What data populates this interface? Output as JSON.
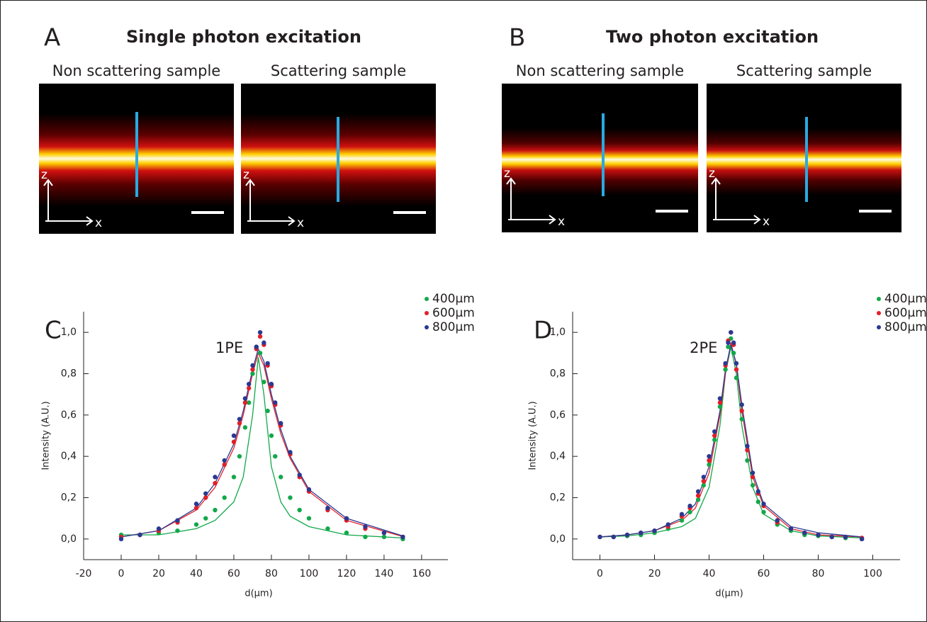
{
  "panels": [
    {
      "label": "A",
      "title": "Single photon excitation",
      "images": [
        "Non scattering sample",
        "Scattering sample"
      ]
    },
    {
      "label": "B",
      "title": "Two photon excitation",
      "images": [
        "Non scattering sample",
        "Scattering sample"
      ]
    }
  ],
  "axis_labels": {
    "z": "z",
    "x": "x"
  },
  "chart_data": [
    {
      "type": "scatter",
      "panel_label": "C",
      "annotation": "1PE",
      "x_label": "d(µm)",
      "y_label": "Intensity (A.U.)",
      "xlim": [
        -20,
        174
      ],
      "ylim": [
        -0.1,
        1.1
      ],
      "xticks": [
        -20,
        0,
        20,
        40,
        60,
        80,
        100,
        120,
        140,
        160
      ],
      "yticks": [
        {
          "value": 0,
          "label": "0,0"
        },
        {
          "value": 0.2,
          "label": "0,2"
        },
        {
          "value": 0.4,
          "label": "0,4"
        },
        {
          "value": 0.6,
          "label": "0,6"
        },
        {
          "value": 0.8,
          "label": "0,8"
        },
        {
          "value": 1.0,
          "label": "1,0"
        }
      ],
      "legend": "upper right",
      "series": [
        {
          "name": "400µm",
          "color": "#12a84a",
          "x": [
            0,
            10,
            20,
            30,
            40,
            45,
            50,
            55,
            60,
            63,
            66,
            68,
            70,
            72,
            74,
            76,
            78,
            80,
            82,
            85,
            90,
            95,
            100,
            110,
            120,
            130,
            140,
            150
          ],
          "values": [
            0.02,
            0.02,
            0.03,
            0.04,
            0.07,
            0.1,
            0.14,
            0.2,
            0.3,
            0.4,
            0.54,
            0.66,
            0.8,
            0.93,
            0.9,
            0.76,
            0.62,
            0.5,
            0.4,
            0.3,
            0.2,
            0.14,
            0.1,
            0.05,
            0.03,
            0.01,
            0.01,
            0.0
          ]
        },
        {
          "name": "600µm",
          "color": "#e0202a",
          "x": [
            0,
            10,
            20,
            30,
            40,
            45,
            50,
            55,
            60,
            63,
            66,
            68,
            70,
            72,
            74,
            76,
            78,
            80,
            82,
            85,
            90,
            95,
            100,
            110,
            120,
            130,
            140,
            150
          ],
          "values": [
            0.01,
            0.02,
            0.04,
            0.08,
            0.15,
            0.2,
            0.27,
            0.36,
            0.47,
            0.56,
            0.66,
            0.73,
            0.82,
            0.92,
            0.98,
            0.94,
            0.84,
            0.74,
            0.65,
            0.55,
            0.41,
            0.3,
            0.23,
            0.14,
            0.09,
            0.05,
            0.03,
            0.01
          ]
        },
        {
          "name": "800µm",
          "color": "#2b3990",
          "x": [
            0,
            10,
            20,
            30,
            40,
            45,
            50,
            55,
            60,
            63,
            66,
            68,
            70,
            72,
            74,
            76,
            78,
            80,
            82,
            85,
            90,
            95,
            100,
            110,
            120,
            130,
            140,
            150
          ],
          "values": [
            0.0,
            0.02,
            0.05,
            0.09,
            0.17,
            0.22,
            0.3,
            0.38,
            0.5,
            0.58,
            0.68,
            0.75,
            0.84,
            0.93,
            1.0,
            0.95,
            0.85,
            0.75,
            0.66,
            0.56,
            0.42,
            0.31,
            0.24,
            0.15,
            0.1,
            0.06,
            0.03,
            0.01
          ]
        }
      ],
      "fits": [
        {
          "color": "#12a84a",
          "x": [
            0,
            20,
            40,
            50,
            60,
            65,
            70,
            73,
            76,
            80,
            85,
            90,
            100,
            120,
            150
          ],
          "values": [
            0.02,
            0.02,
            0.05,
            0.09,
            0.18,
            0.3,
            0.6,
            0.88,
            0.7,
            0.35,
            0.18,
            0.11,
            0.06,
            0.02,
            0.005
          ]
        },
        {
          "color": "#e0202a",
          "x": [
            0,
            20,
            40,
            50,
            60,
            65,
            70,
            73,
            76,
            80,
            85,
            90,
            100,
            120,
            150
          ],
          "values": [
            0.01,
            0.04,
            0.14,
            0.25,
            0.44,
            0.6,
            0.8,
            0.9,
            0.84,
            0.68,
            0.51,
            0.39,
            0.23,
            0.09,
            0.012
          ]
        },
        {
          "color": "#2b3990",
          "x": [
            0,
            20,
            40,
            50,
            60,
            65,
            70,
            73,
            76,
            80,
            85,
            90,
            100,
            120,
            150
          ],
          "values": [
            0.01,
            0.04,
            0.15,
            0.27,
            0.46,
            0.62,
            0.82,
            0.92,
            0.86,
            0.7,
            0.53,
            0.4,
            0.24,
            0.1,
            0.015
          ]
        }
      ]
    },
    {
      "type": "scatter",
      "panel_label": "D",
      "annotation": "2PE",
      "x_label": "d(µm)",
      "y_label": "Intensity (A.U.)",
      "xlim": [
        -10,
        110
      ],
      "ylim": [
        -0.1,
        1.1
      ],
      "xticks": [
        0,
        20,
        40,
        60,
        80,
        100
      ],
      "yticks": [
        {
          "value": 0,
          "label": "0,0"
        },
        {
          "value": 0.2,
          "label": "0,2"
        },
        {
          "value": 0.4,
          "label": "0,4"
        },
        {
          "value": 0.6,
          "label": "0,6"
        },
        {
          "value": 0.8,
          "label": "0,8"
        },
        {
          "value": 1.0,
          "label": "1,0"
        }
      ],
      "legend": "upper right",
      "series": [
        {
          "name": "400µm",
          "color": "#12a84a",
          "x": [
            0,
            5,
            10,
            15,
            20,
            25,
            30,
            33,
            36,
            38,
            40,
            42,
            44,
            46,
            47,
            48,
            49,
            50,
            52,
            54,
            56,
            58,
            60,
            65,
            70,
            75,
            80,
            85,
            90,
            96
          ],
          "values": [
            0.01,
            0.01,
            0.015,
            0.02,
            0.03,
            0.05,
            0.09,
            0.13,
            0.19,
            0.26,
            0.36,
            0.48,
            0.64,
            0.82,
            0.93,
            0.97,
            0.9,
            0.78,
            0.58,
            0.38,
            0.26,
            0.18,
            0.13,
            0.07,
            0.04,
            0.02,
            0.015,
            0.01,
            0.005,
            0.0
          ]
        },
        {
          "name": "600µm",
          "color": "#e0202a",
          "x": [
            0,
            5,
            10,
            15,
            20,
            25,
            30,
            33,
            36,
            38,
            40,
            42,
            44,
            46,
            47,
            48,
            49,
            50,
            52,
            54,
            56,
            58,
            60,
            65,
            70,
            75,
            80,
            85,
            90,
            96
          ],
          "values": [
            0.01,
            0.01,
            0.02,
            0.03,
            0.04,
            0.06,
            0.11,
            0.15,
            0.21,
            0.28,
            0.38,
            0.5,
            0.66,
            0.84,
            0.96,
            1.0,
            0.94,
            0.82,
            0.62,
            0.43,
            0.3,
            0.22,
            0.16,
            0.08,
            0.05,
            0.03,
            0.02,
            0.01,
            0.01,
            0.005
          ]
        },
        {
          "name": "800µm",
          "color": "#2b3990",
          "x": [
            0,
            5,
            10,
            15,
            20,
            25,
            30,
            33,
            36,
            38,
            40,
            42,
            44,
            46,
            47,
            48,
            49,
            50,
            52,
            54,
            56,
            58,
            60,
            65,
            70,
            75,
            80,
            85,
            90,
            96
          ],
          "values": [
            0.01,
            0.01,
            0.02,
            0.03,
            0.04,
            0.07,
            0.12,
            0.16,
            0.23,
            0.3,
            0.4,
            0.52,
            0.68,
            0.85,
            0.95,
            1.0,
            0.95,
            0.85,
            0.65,
            0.45,
            0.32,
            0.23,
            0.17,
            0.09,
            0.05,
            0.03,
            0.02,
            0.01,
            0.01,
            0.0
          ]
        }
      ],
      "fits": [
        {
          "color": "#12a84a",
          "x": [
            0,
            10,
            20,
            30,
            35,
            40,
            44,
            46,
            48,
            50,
            52,
            56,
            60,
            70,
            80,
            96
          ],
          "values": [
            0.01,
            0.015,
            0.03,
            0.06,
            0.1,
            0.25,
            0.55,
            0.8,
            0.93,
            0.8,
            0.55,
            0.25,
            0.12,
            0.04,
            0.015,
            0.005
          ]
        },
        {
          "color": "#e0202a",
          "x": [
            0,
            10,
            20,
            30,
            35,
            40,
            44,
            46,
            48,
            50,
            52,
            56,
            60,
            70,
            80,
            96
          ],
          "values": [
            0.01,
            0.02,
            0.04,
            0.09,
            0.15,
            0.32,
            0.6,
            0.8,
            0.95,
            0.84,
            0.62,
            0.3,
            0.16,
            0.05,
            0.02,
            0.01
          ]
        },
        {
          "color": "#2b3990",
          "x": [
            0,
            10,
            20,
            30,
            35,
            40,
            44,
            46,
            48,
            50,
            52,
            56,
            60,
            70,
            80,
            96
          ],
          "values": [
            0.01,
            0.02,
            0.04,
            0.1,
            0.17,
            0.35,
            0.62,
            0.82,
            0.94,
            0.85,
            0.65,
            0.32,
            0.17,
            0.06,
            0.03,
            0.01
          ]
        }
      ]
    }
  ]
}
